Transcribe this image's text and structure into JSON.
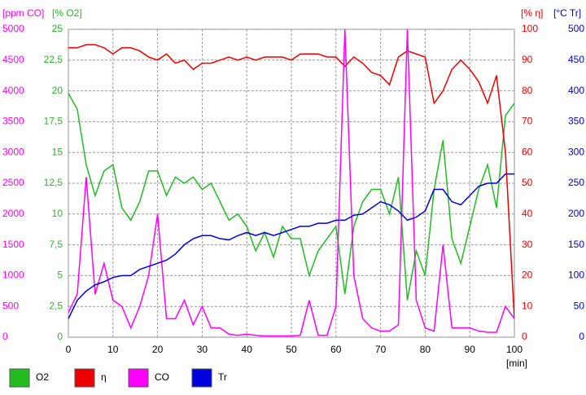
{
  "chart_data": {
    "type": "line",
    "xlabel": "[min]",
    "ylabel": "[ppm CO]",
    "y2label": "[% O2]",
    "y3label": "[% η]",
    "y4label": "[°C Tr]",
    "x": [
      0,
      2,
      4,
      6,
      8,
      10,
      12,
      14,
      16,
      18,
      20,
      22,
      24,
      26,
      28,
      30,
      32,
      34,
      36,
      38,
      40,
      42,
      44,
      46,
      48,
      50,
      52,
      54,
      56,
      58,
      60,
      62,
      64,
      66,
      68,
      70,
      72,
      74,
      76,
      78,
      80,
      82,
      84,
      86,
      88,
      90,
      92,
      94,
      96,
      98,
      100
    ],
    "xlim": [
      0,
      100
    ],
    "xticks": [
      0,
      10,
      20,
      30,
      40,
      50,
      60,
      70,
      80,
      90,
      100
    ],
    "ylim": [
      0,
      5000
    ],
    "yticks": [
      0,
      500,
      1000,
      1500,
      2000,
      2500,
      3000,
      3500,
      4000,
      4500,
      5000
    ],
    "ycolor": "#ff00ff",
    "y2lim": [
      0,
      25
    ],
    "y2ticks": [
      0,
      {
        "value": 2.5,
        "label": "2,5"
      },
      5,
      {
        "value": 7.5,
        "label": "7,5"
      },
      10,
      {
        "value": 12.5,
        "label": "12,5"
      },
      15,
      {
        "value": 17.5,
        "label": "17,5"
      },
      20,
      {
        "value": 22.5,
        "label": "22,5"
      },
      25
    ],
    "y2color": "#22bb22",
    "y3lim": [
      0,
      100
    ],
    "y3ticks": [
      0,
      10,
      20,
      30,
      40,
      50,
      60,
      70,
      80,
      90,
      100
    ],
    "y3color": "#ee0000",
    "y4lim": [
      0,
      500
    ],
    "y4ticks": [
      0,
      50,
      100,
      150,
      200,
      250,
      300,
      350,
      400,
      450,
      500
    ],
    "y4color": "#0000cc",
    "grid": true,
    "series": [
      {
        "name": "O2",
        "color": "#22bb22",
        "axis": "y2",
        "values": [
          19.8,
          18.5,
          14,
          11.5,
          13.5,
          14,
          10.5,
          9.5,
          11,
          13.5,
          13.5,
          11.5,
          13,
          12.5,
          13,
          12,
          12.5,
          11,
          9.5,
          10,
          9,
          7,
          8.5,
          6.5,
          9,
          8,
          8,
          5,
          7,
          8,
          9,
          3.5,
          9,
          11,
          12,
          12,
          10,
          13,
          3,
          7,
          5,
          12,
          16,
          8,
          6,
          9,
          12,
          14,
          10.5,
          18,
          19
        ]
      },
      {
        "name": "η",
        "color": "#ee0000",
        "axis": "y3",
        "values": [
          94,
          94,
          95,
          95,
          94,
          92,
          94,
          94,
          93,
          91,
          90,
          92,
          89,
          90,
          87,
          89,
          89,
          90,
          91,
          90,
          91,
          90,
          91,
          91,
          91,
          90,
          92,
          92,
          92,
          91,
          91,
          88,
          91,
          89,
          86,
          85,
          82,
          91,
          93,
          92,
          91,
          76,
          80,
          87,
          90,
          87,
          83,
          76,
          85,
          60,
          6
        ]
      },
      {
        "name": "CO",
        "color": "#ff00ff",
        "axis": "y",
        "values": [
          400,
          700,
          2600,
          700,
          1200,
          600,
          500,
          150,
          500,
          1000,
          2000,
          300,
          300,
          600,
          200,
          500,
          150,
          150,
          50,
          30,
          50,
          30,
          20,
          20,
          20,
          20,
          30,
          600,
          30,
          30,
          500,
          5000,
          1000,
          300,
          150,
          100,
          100,
          200,
          5000,
          600,
          150,
          100,
          1500,
          150,
          150,
          150,
          100,
          80,
          80,
          500,
          300
        ]
      },
      {
        "name": "Tr",
        "color": "#0000dd",
        "axis": "y4",
        "values": [
          30,
          60,
          75,
          85,
          90,
          97,
          100,
          100,
          110,
          115,
          120,
          125,
          135,
          150,
          160,
          165,
          165,
          160,
          158,
          165,
          170,
          165,
          170,
          165,
          170,
          175,
          180,
          180,
          185,
          185,
          190,
          190,
          198,
          200,
          210,
          220,
          215,
          205,
          190,
          195,
          205,
          240,
          240,
          220,
          215,
          230,
          245,
          250,
          250,
          265,
          265
        ]
      }
    ]
  }
}
